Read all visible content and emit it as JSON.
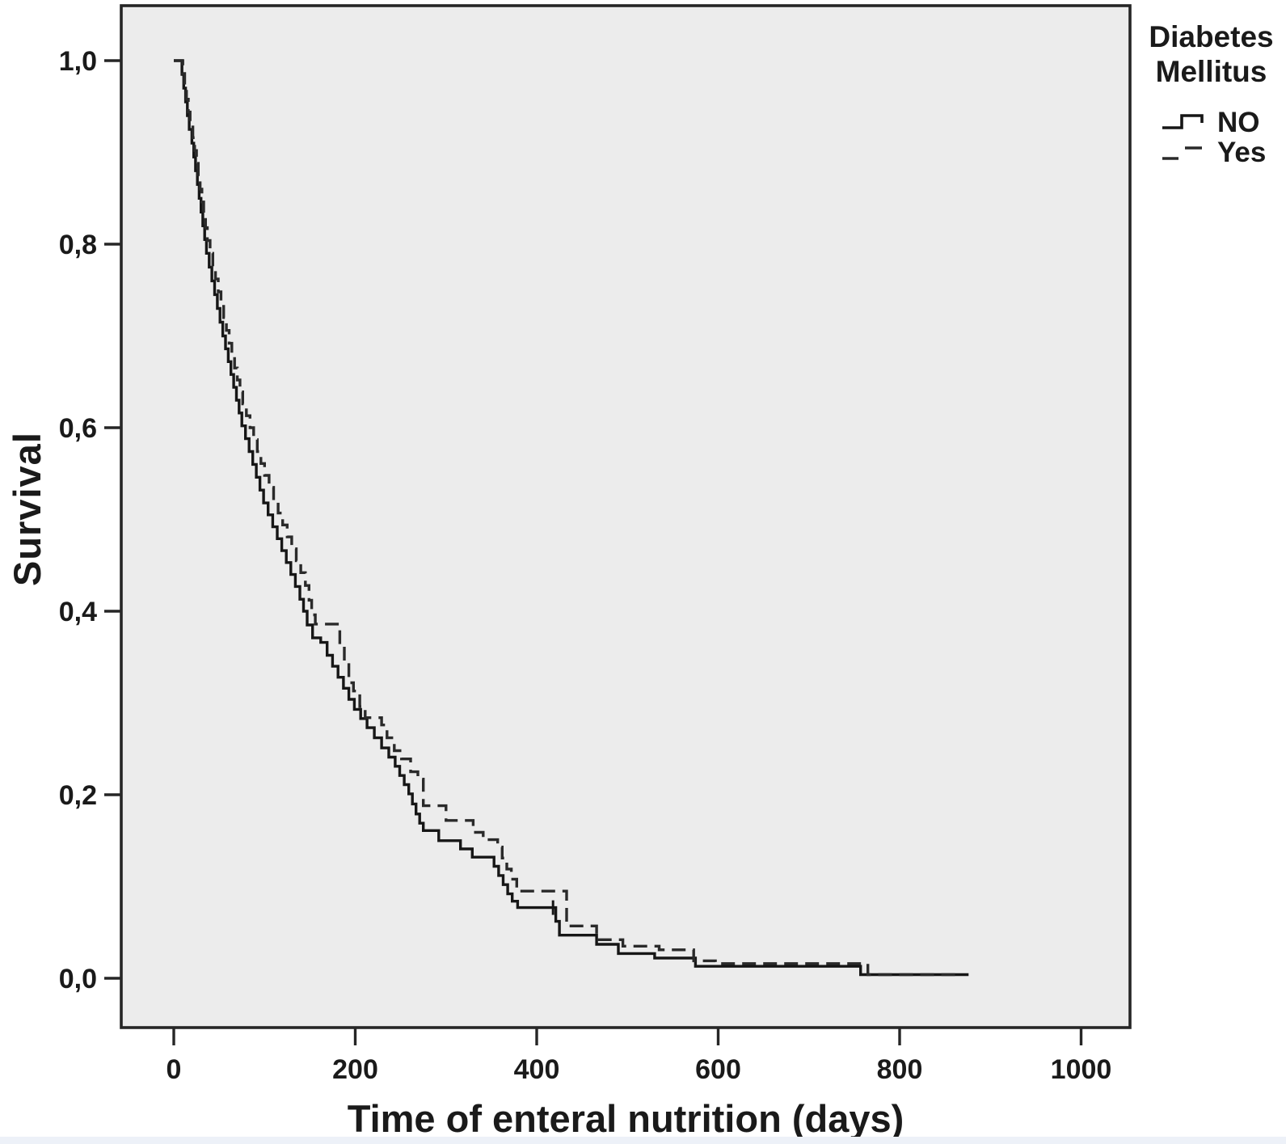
{
  "chart_data": {
    "type": "line",
    "subtype": "kaplan-meier-step",
    "title": "",
    "xlabel": "Time of enteral nutrition (days)",
    "ylabel": "Survival",
    "xlim": [
      -58,
      1054
    ],
    "ylim": [
      -0.054,
      1.06
    ],
    "grid": false,
    "plot_background": "#ececec",
    "frame_color": "#262626",
    "line_color": "#161616",
    "legend_position": "top-right-outside",
    "x_ticks": [
      {
        "value": 0,
        "label": "0"
      },
      {
        "value": 200,
        "label": "200"
      },
      {
        "value": 400,
        "label": "400"
      },
      {
        "value": 600,
        "label": "600"
      },
      {
        "value": 800,
        "label": "800"
      },
      {
        "value": 1000,
        "label": "1000"
      }
    ],
    "y_ticks": [
      {
        "value": 0.0,
        "label": "0,0"
      },
      {
        "value": 0.2,
        "label": "0,2"
      },
      {
        "value": 0.4,
        "label": "0,4"
      },
      {
        "value": 0.6,
        "label": "0,6"
      },
      {
        "value": 0.8,
        "label": "0,8"
      },
      {
        "value": 1.0,
        "label": "1,0"
      }
    ],
    "series": [
      {
        "name": "NO",
        "style": "solid",
        "points": [
          [
            0,
            1.0
          ],
          [
            7,
            1.0
          ],
          [
            9,
            0.985
          ],
          [
            11,
            0.97
          ],
          [
            13,
            0.955
          ],
          [
            15,
            0.94
          ],
          [
            17,
            0.925
          ],
          [
            20,
            0.91
          ],
          [
            22,
            0.895
          ],
          [
            24,
            0.88
          ],
          [
            26,
            0.865
          ],
          [
            28,
            0.85
          ],
          [
            30,
            0.835
          ],
          [
            32,
            0.82
          ],
          [
            34,
            0.805
          ],
          [
            36,
            0.79
          ],
          [
            39,
            0.775
          ],
          [
            42,
            0.76
          ],
          [
            45,
            0.745
          ],
          [
            48,
            0.73
          ],
          [
            51,
            0.715
          ],
          [
            54,
            0.7
          ],
          [
            57,
            0.686
          ],
          [
            60,
            0.672
          ],
          [
            63,
            0.658
          ],
          [
            66,
            0.644
          ],
          [
            69,
            0.63
          ],
          [
            72,
            0.616
          ],
          [
            75,
            0.602
          ],
          [
            79,
            0.588
          ],
          [
            83,
            0.574
          ],
          [
            87,
            0.56
          ],
          [
            91,
            0.546
          ],
          [
            95,
            0.532
          ],
          [
            99,
            0.518
          ],
          [
            104,
            0.505
          ],
          [
            109,
            0.492
          ],
          [
            114,
            0.479
          ],
          [
            119,
            0.466
          ],
          [
            124,
            0.453
          ],
          [
            129,
            0.44
          ],
          [
            134,
            0.427
          ],
          [
            139,
            0.413
          ],
          [
            143,
            0.4
          ],
          [
            147,
            0.385
          ],
          [
            153,
            0.371
          ],
          [
            162,
            0.366
          ],
          [
            169,
            0.352
          ],
          [
            175,
            0.34
          ],
          [
            181,
            0.328
          ],
          [
            187,
            0.316
          ],
          [
            193,
            0.304
          ],
          [
            199,
            0.293
          ],
          [
            206,
            0.283
          ],
          [
            213,
            0.273
          ],
          [
            221,
            0.262
          ],
          [
            229,
            0.251
          ],
          [
            237,
            0.241
          ],
          [
            244,
            0.231
          ],
          [
            249,
            0.221
          ],
          [
            254,
            0.211
          ],
          [
            259,
            0.201
          ],
          [
            263,
            0.19
          ],
          [
            267,
            0.179
          ],
          [
            271,
            0.169
          ],
          [
            275,
            0.161
          ],
          [
            292,
            0.15
          ],
          [
            316,
            0.141
          ],
          [
            329,
            0.132
          ],
          [
            353,
            0.122
          ],
          [
            358,
            0.112
          ],
          [
            363,
            0.102
          ],
          [
            368,
            0.092
          ],
          [
            373,
            0.084
          ],
          [
            379,
            0.077
          ],
          [
            421,
            0.062
          ],
          [
            425,
            0.047
          ],
          [
            466,
            0.037
          ],
          [
            490,
            0.027
          ],
          [
            530,
            0.022
          ],
          [
            575,
            0.013
          ],
          [
            757,
            0.004
          ],
          [
            876,
            0.004
          ]
        ]
      },
      {
        "name": "Yes",
        "style": "dashed",
        "points": [
          [
            0,
            1.0
          ],
          [
            8,
            1.0
          ],
          [
            10,
            0.986
          ],
          [
            12,
            0.972
          ],
          [
            14,
            0.958
          ],
          [
            16,
            0.944
          ],
          [
            18,
            0.93
          ],
          [
            21,
            0.916
          ],
          [
            23,
            0.902
          ],
          [
            25,
            0.888
          ],
          [
            27,
            0.874
          ],
          [
            29,
            0.86
          ],
          [
            31,
            0.846
          ],
          [
            33,
            0.832
          ],
          [
            35,
            0.818
          ],
          [
            37,
            0.804
          ],
          [
            40,
            0.79
          ],
          [
            43,
            0.776
          ],
          [
            46,
            0.762
          ],
          [
            49,
            0.748
          ],
          [
            52,
            0.734
          ],
          [
            55,
            0.72
          ],
          [
            58,
            0.706
          ],
          [
            61,
            0.692
          ],
          [
            64,
            0.678
          ],
          [
            67,
            0.665
          ],
          [
            70,
            0.652
          ],
          [
            73,
            0.639
          ],
          [
            76,
            0.626
          ],
          [
            80,
            0.613
          ],
          [
            84,
            0.6
          ],
          [
            88,
            0.587
          ],
          [
            92,
            0.574
          ],
          [
            96,
            0.561
          ],
          [
            100,
            0.548
          ],
          [
            105,
            0.535
          ],
          [
            110,
            0.521
          ],
          [
            115,
            0.507
          ],
          [
            120,
            0.494
          ],
          [
            125,
            0.481
          ],
          [
            130,
            0.468
          ],
          [
            135,
            0.455
          ],
          [
            140,
            0.442
          ],
          [
            145,
            0.428
          ],
          [
            149,
            0.412
          ],
          [
            152,
            0.396
          ],
          [
            156,
            0.386
          ],
          [
            183,
            0.364
          ],
          [
            188,
            0.346
          ],
          [
            193,
            0.322
          ],
          [
            198,
            0.313
          ],
          [
            205,
            0.296
          ],
          [
            211,
            0.284
          ],
          [
            229,
            0.276
          ],
          [
            235,
            0.262
          ],
          [
            243,
            0.248
          ],
          [
            251,
            0.239
          ],
          [
            261,
            0.225
          ],
          [
            269,
            0.217
          ],
          [
            275,
            0.188
          ],
          [
            300,
            0.172
          ],
          [
            330,
            0.159
          ],
          [
            341,
            0.151
          ],
          [
            357,
            0.143
          ],
          [
            362,
            0.131
          ],
          [
            367,
            0.119
          ],
          [
            372,
            0.108
          ],
          [
            378,
            0.095
          ],
          [
            433,
            0.057
          ],
          [
            466,
            0.042
          ],
          [
            495,
            0.035
          ],
          [
            535,
            0.031
          ],
          [
            573,
            0.019
          ],
          [
            597,
            0.016
          ],
          [
            765,
            0.004
          ],
          [
            868,
            0.004
          ]
        ]
      }
    ],
    "censor_marks": [
      {
        "series": "NO",
        "day": 418,
        "survival": 0.077
      }
    ]
  },
  "legend": {
    "title_line1": "Diabetes",
    "title_line2": "Mellitus",
    "entries": [
      {
        "label": "NO",
        "style": "solid"
      },
      {
        "label": "Yes",
        "style": "dashed"
      }
    ]
  }
}
